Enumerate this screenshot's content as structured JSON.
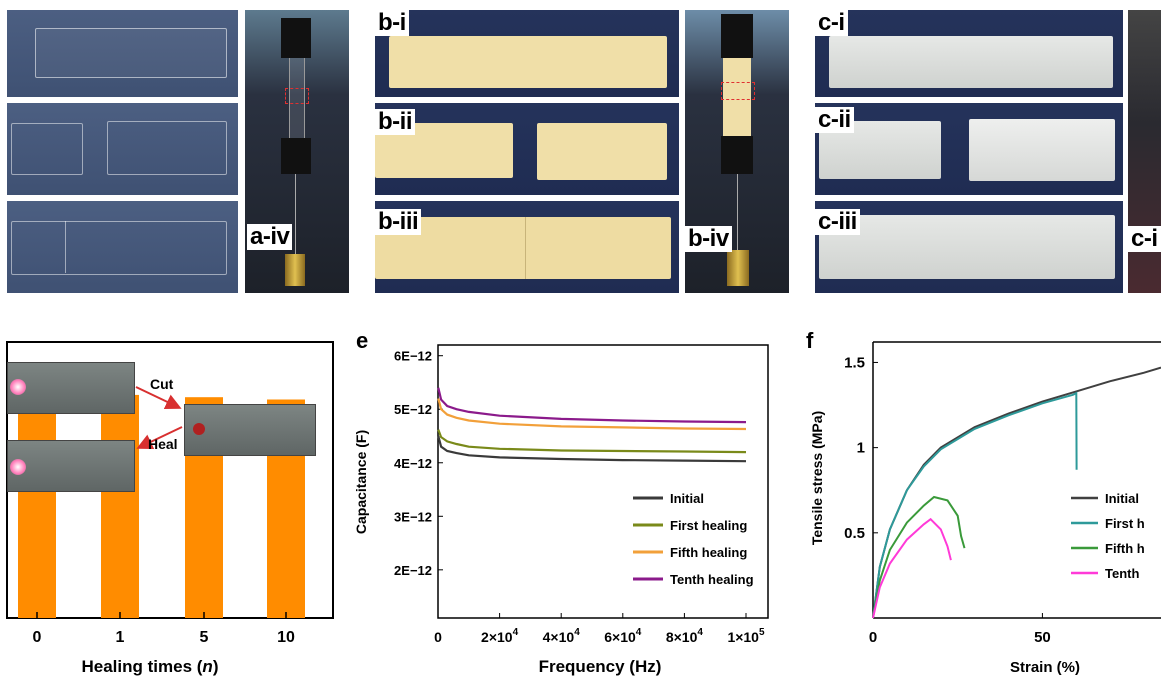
{
  "panels": {
    "a": {
      "tag_iv": "a-iv"
    },
    "b": {
      "tag_i": "b-i",
      "tag_ii": "b-ii",
      "tag_iii": "b-iii",
      "tag_iv": "b-iv"
    },
    "c": {
      "tag_i": "c-i",
      "tag_ii": "c-ii",
      "tag_iii": "c-iii",
      "tag_iv": "c-i"
    },
    "d": {
      "cut_label": "Cut",
      "heal_label": "Heal",
      "xlabel_pre": "Healing times (",
      "xlabel_var": "n",
      "xlabel_post": ")"
    },
    "e": {
      "tag": "e"
    },
    "f": {
      "tag": "f"
    }
  },
  "colors": {
    "bar": "#ff8c00",
    "initial": "#3a3a3a",
    "first": "#7a8a1a",
    "fifth": "#f2a03a",
    "tenth": "#8b1a8b",
    "f_initial": "#404040",
    "f_first": "#2e9a9a",
    "f_fifth": "#3a9a3a",
    "f_tenth": "#ff3ad8"
  },
  "chart_data": [
    {
      "type": "bar",
      "panel": "d",
      "categories": [
        "0",
        "1",
        "5",
        "10"
      ],
      "values": [
        0.98,
        0.97,
        0.96,
        0.95
      ],
      "xlabel": "Healing times (n)",
      "ylim": [
        0,
        1.2
      ]
    },
    {
      "type": "line",
      "panel": "e",
      "xlabel": "Frequency (Hz)",
      "ylabel": "Capacitance (F)",
      "xlim": [
        0,
        100000
      ],
      "ylim": [
        1.1e-12,
        6.2e-12
      ],
      "xticks": [
        "0",
        "2×10",
        "4×10",
        "6×10",
        "8×10",
        "1×10"
      ],
      "xtick_exponents": [
        "",
        "4",
        "4",
        "4",
        "4",
        "5"
      ],
      "xtick_values": [
        0,
        20000,
        40000,
        60000,
        80000,
        100000
      ],
      "yticks": [
        "2E−12",
        "3E−12",
        "4E−12",
        "5E−12",
        "6E−12"
      ],
      "ytick_values": [
        2e-12,
        3e-12,
        4e-12,
        5e-12,
        6e-12
      ],
      "legend_position": "bottom-right",
      "series": [
        {
          "name": "Initial",
          "x": [
            100,
            1000,
            3000,
            6000,
            10000,
            20000,
            40000,
            60000,
            80000,
            100000
          ],
          "y": [
            4.5e-12,
            4.3e-12,
            4.22e-12,
            4.18e-12,
            4.14e-12,
            4.1e-12,
            4.07e-12,
            4.05e-12,
            4.04e-12,
            4.03e-12
          ]
        },
        {
          "name": "First healing",
          "x": [
            100,
            1000,
            3000,
            6000,
            10000,
            20000,
            40000,
            60000,
            80000,
            100000
          ],
          "y": [
            4.62e-12,
            4.48e-12,
            4.4e-12,
            4.35e-12,
            4.3e-12,
            4.26e-12,
            4.23e-12,
            4.22e-12,
            4.21e-12,
            4.2e-12
          ]
        },
        {
          "name": "Fifth healing",
          "x": [
            100,
            1000,
            3000,
            6000,
            10000,
            20000,
            40000,
            60000,
            80000,
            100000
          ],
          "y": [
            5.2e-12,
            5e-12,
            4.9e-12,
            4.84e-12,
            4.79e-12,
            4.73e-12,
            4.68e-12,
            4.66e-12,
            4.64e-12,
            4.63e-12
          ]
        },
        {
          "name": "Tenth healing",
          "x": [
            100,
            1000,
            3000,
            6000,
            10000,
            20000,
            40000,
            60000,
            80000,
            100000
          ],
          "y": [
            5.4e-12,
            5.18e-12,
            5.06e-12,
            5e-12,
            4.95e-12,
            4.88e-12,
            4.82e-12,
            4.79e-12,
            4.77e-12,
            4.76e-12
          ]
        }
      ]
    },
    {
      "type": "line",
      "panel": "f",
      "xlabel": "Strain (%)",
      "ylabel": "Tensile stress (MPa)",
      "xlim": [
        0,
        85
      ],
      "ylim": [
        0,
        1.62
      ],
      "xticks": [
        "0",
        "50"
      ],
      "xtick_values": [
        0,
        50
      ],
      "yticks": [
        "0.5",
        "1",
        "1.5"
      ],
      "ytick_values": [
        0.5,
        1,
        1.5
      ],
      "legend_position": "right",
      "series": [
        {
          "name": "Initial",
          "x": [
            0,
            2,
            5,
            10,
            15,
            20,
            30,
            40,
            50,
            60,
            70,
            80,
            85
          ],
          "y": [
            0,
            0.3,
            0.52,
            0.75,
            0.9,
            1.0,
            1.12,
            1.2,
            1.27,
            1.33,
            1.39,
            1.44,
            1.47
          ]
        },
        {
          "name": "First h",
          "x": [
            0,
            2,
            5,
            10,
            15,
            20,
            30,
            40,
            50,
            59,
            60,
            60.1
          ],
          "y": [
            0,
            0.3,
            0.52,
            0.75,
            0.89,
            0.99,
            1.11,
            1.19,
            1.26,
            1.31,
            1.32,
            0.87
          ]
        },
        {
          "name": "Fifth h",
          "x": [
            0,
            2,
            5,
            10,
            15,
            18,
            22,
            25,
            26,
            27
          ],
          "y": [
            0,
            0.22,
            0.4,
            0.56,
            0.66,
            0.71,
            0.69,
            0.6,
            0.48,
            0.41
          ]
        },
        {
          "name": "Tenth",
          "x": [
            0,
            2,
            5,
            10,
            15,
            17,
            20,
            22,
            23
          ],
          "y": [
            0,
            0.18,
            0.32,
            0.46,
            0.55,
            0.58,
            0.52,
            0.42,
            0.34
          ]
        }
      ]
    }
  ]
}
